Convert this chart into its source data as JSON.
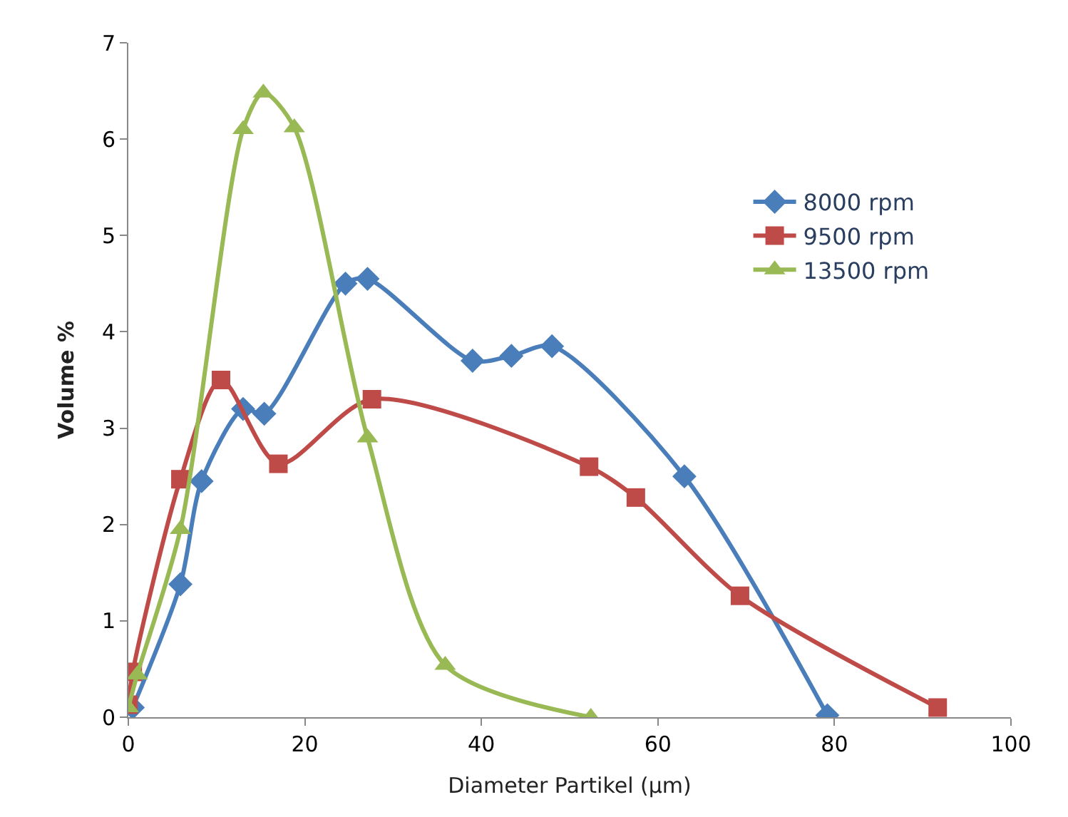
{
  "chart_data": {
    "type": "line",
    "xlabel": "Diameter Partikel (µm)",
    "ylabel": "Volume %",
    "xlim": [
      0,
      100
    ],
    "xticks": [
      0,
      20,
      40,
      60,
      80,
      100
    ],
    "ylim": [
      0,
      7
    ],
    "yticks": [
      0,
      1,
      2,
      3,
      4,
      5,
      6,
      7
    ],
    "legend": "right",
    "line_style": "solid",
    "series": [
      {
        "name": "8000 rpm",
        "color": "#4a7ebb",
        "marker": "diamond",
        "x": [
          0.5,
          5.9,
          8.3,
          13,
          15.4,
          24.6,
          27.1,
          39,
          43.4,
          48,
          63,
          79.2
        ],
        "values": [
          0.1,
          1.38,
          2.45,
          3.2,
          3.15,
          4.5,
          4.55,
          3.7,
          3.75,
          3.85,
          2.5,
          0.02
        ]
      },
      {
        "name": "9500 rpm",
        "color": "#be4b48",
        "marker": "square",
        "x": [
          0,
          0.5,
          5.9,
          10.5,
          17,
          27.6,
          52.2,
          57.5,
          69.3,
          91.7
        ],
        "values": [
          0.13,
          0.47,
          2.47,
          3.5,
          2.63,
          3.3,
          2.6,
          2.28,
          1.26,
          0.1
        ]
      },
      {
        "name": "13500 rpm",
        "color": "#98b954",
        "marker": "triangle",
        "x": [
          0,
          1,
          5.9,
          13,
          15.3,
          18.8,
          27.1,
          35.9,
          52.4
        ],
        "values": [
          0.1,
          0.44,
          1.95,
          6.1,
          6.48,
          6.12,
          2.9,
          0.54,
          0
        ]
      }
    ]
  }
}
